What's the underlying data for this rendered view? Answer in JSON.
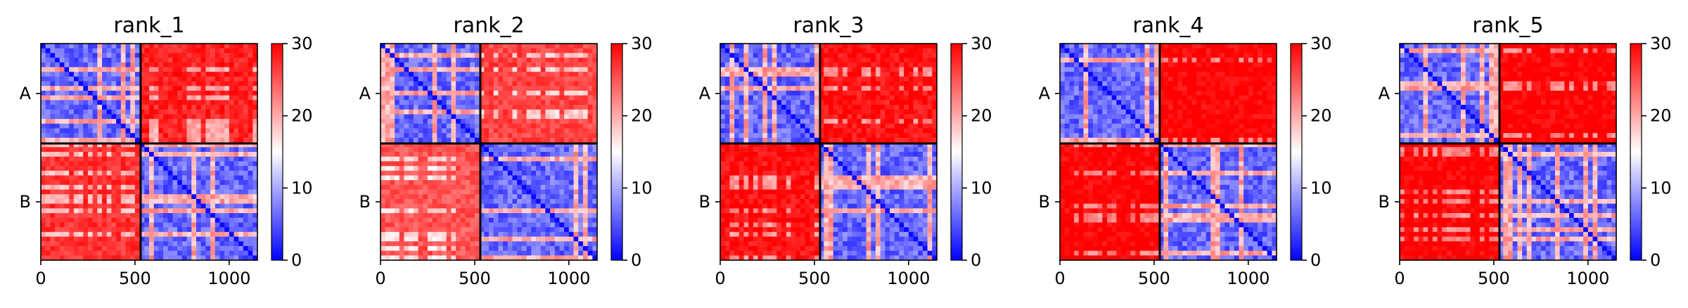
{
  "chart_data": [
    {
      "type": "heatmap",
      "title": "rank_1",
      "xlabel": "",
      "ylabel": "",
      "xlim": [
        0,
        1150
      ],
      "ylim": [
        1150,
        0
      ],
      "x_ticks": [
        0,
        500,
        1000
      ],
      "chain_boundary": 530,
      "y_category_labels": [
        "A",
        "B"
      ],
      "colorbar": {
        "range": [
          0,
          30
        ],
        "ticks": [
          0,
          10,
          20,
          30
        ],
        "colormap": "bwr",
        "low_color": "#0000ff",
        "mid_color": "#ffffff",
        "high_color": "#ff0000"
      },
      "matrix_blocks": [
        {
          "rows": "A",
          "cols": "A",
          "approx_value": 6
        },
        {
          "rows": "A",
          "cols": "B",
          "approx_value": 28
        },
        {
          "rows": "B",
          "cols": "A",
          "approx_value": 27
        },
        {
          "rows": "B",
          "cols": "B",
          "approx_value": 6
        }
      ]
    },
    {
      "type": "heatmap",
      "title": "rank_2",
      "xlabel": "",
      "ylabel": "",
      "xlim": [
        0,
        1150
      ],
      "ylim": [
        1150,
        0
      ],
      "x_ticks": [
        0,
        500,
        1000
      ],
      "chain_boundary": 530,
      "y_category_labels": [
        "A",
        "B"
      ],
      "colorbar": {
        "range": [
          0,
          30
        ],
        "ticks": [
          0,
          10,
          20,
          30
        ],
        "colormap": "bwr",
        "low_color": "#0000ff",
        "mid_color": "#ffffff",
        "high_color": "#ff0000"
      },
      "matrix_blocks": [
        {
          "rows": "A",
          "cols": "A",
          "approx_value": 6
        },
        {
          "rows": "A",
          "cols": "B",
          "approx_value": 26
        },
        {
          "rows": "B",
          "cols": "A",
          "approx_value": 25
        },
        {
          "rows": "B",
          "cols": "B",
          "approx_value": 6
        }
      ]
    },
    {
      "type": "heatmap",
      "title": "rank_3",
      "xlabel": "",
      "ylabel": "",
      "xlim": [
        0,
        1150
      ],
      "ylim": [
        1150,
        0
      ],
      "x_ticks": [
        0,
        500,
        1000
      ],
      "chain_boundary": 530,
      "y_category_labels": [
        "A",
        "B"
      ],
      "colorbar": {
        "range": [
          0,
          30
        ],
        "ticks": [
          0,
          10,
          20,
          30
        ],
        "colormap": "bwr",
        "low_color": "#0000ff",
        "mid_color": "#ffffff",
        "high_color": "#ff0000"
      },
      "matrix_blocks": [
        {
          "rows": "A",
          "cols": "A",
          "approx_value": 6
        },
        {
          "rows": "A",
          "cols": "B",
          "approx_value": 29
        },
        {
          "rows": "B",
          "cols": "A",
          "approx_value": 29
        },
        {
          "rows": "B",
          "cols": "B",
          "approx_value": 6
        }
      ]
    },
    {
      "type": "heatmap",
      "title": "rank_4",
      "xlabel": "",
      "ylabel": "",
      "xlim": [
        0,
        1150
      ],
      "ylim": [
        1150,
        0
      ],
      "x_ticks": [
        0,
        500,
        1000
      ],
      "chain_boundary": 530,
      "y_category_labels": [
        "A",
        "B"
      ],
      "colorbar": {
        "range": [
          0,
          30
        ],
        "ticks": [
          0,
          10,
          20,
          30
        ],
        "colormap": "bwr",
        "low_color": "#0000ff",
        "mid_color": "#ffffff",
        "high_color": "#ff0000"
      },
      "matrix_blocks": [
        {
          "rows": "A",
          "cols": "A",
          "approx_value": 6
        },
        {
          "rows": "A",
          "cols": "B",
          "approx_value": 30
        },
        {
          "rows": "B",
          "cols": "A",
          "approx_value": 30
        },
        {
          "rows": "B",
          "cols": "B",
          "approx_value": 6
        }
      ]
    },
    {
      "type": "heatmap",
      "title": "rank_5",
      "xlabel": "",
      "ylabel": "",
      "xlim": [
        0,
        1150
      ],
      "ylim": [
        1150,
        0
      ],
      "x_ticks": [
        0,
        500,
        1000
      ],
      "chain_boundary": 530,
      "y_category_labels": [
        "A",
        "B"
      ],
      "colorbar": {
        "range": [
          0,
          30
        ],
        "ticks": [
          0,
          10,
          20,
          30
        ],
        "colormap": "bwr",
        "low_color": "#0000ff",
        "mid_color": "#ffffff",
        "high_color": "#ff0000"
      },
      "matrix_blocks": [
        {
          "rows": "A",
          "cols": "A",
          "approx_value": 6
        },
        {
          "rows": "A",
          "cols": "B",
          "approx_value": 30
        },
        {
          "rows": "B",
          "cols": "A",
          "approx_value": 30
        },
        {
          "rows": "B",
          "cols": "B",
          "approx_value": 6
        }
      ]
    }
  ]
}
